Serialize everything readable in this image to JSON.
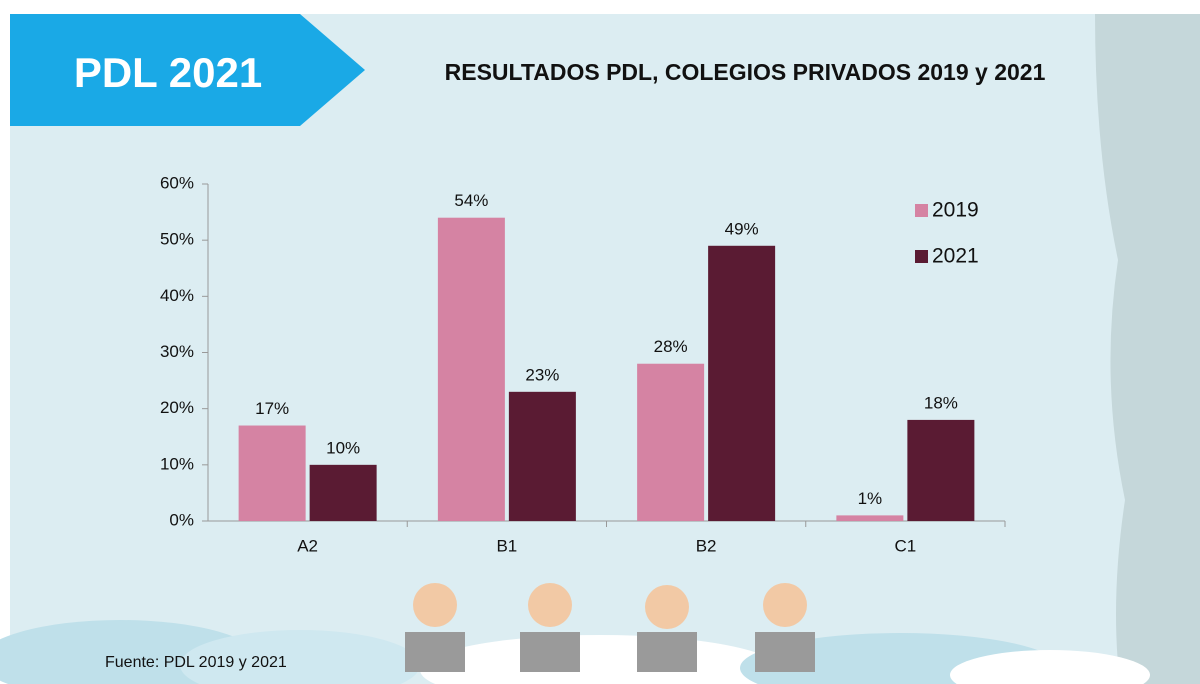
{
  "chart_data": {
    "type": "bar",
    "badge": "PDL 2021",
    "title": "RESULTADOS PDL, COLEGIOS PRIVADOS 2019 y 2021",
    "source": "Fuente: PDL 2019 y 2021",
    "categories": [
      "A2",
      "B1",
      "B2",
      "C1"
    ],
    "series": [
      {
        "name": "2019",
        "color": "#d583a3",
        "values": [
          17,
          54,
          28,
          1
        ],
        "value_labels": [
          "17%",
          "54%",
          "28%",
          "1%"
        ]
      },
      {
        "name": "2021",
        "color": "#5a1b33",
        "values": [
          10,
          23,
          49,
          18
        ],
        "value_labels": [
          "10%",
          "23%",
          "49%",
          "18%"
        ]
      }
    ],
    "ylim": [
      0,
      60
    ],
    "yticks": [
      {
        "value": 0,
        "label": "0%"
      },
      {
        "value": 10,
        "label": "10%"
      },
      {
        "value": 20,
        "label": "20%"
      },
      {
        "value": 30,
        "label": "30%"
      },
      {
        "value": 40,
        "label": "40%"
      },
      {
        "value": 50,
        "label": "50%"
      },
      {
        "value": 60,
        "label": "60%"
      }
    ],
    "legend": "top-right",
    "grid": false
  }
}
